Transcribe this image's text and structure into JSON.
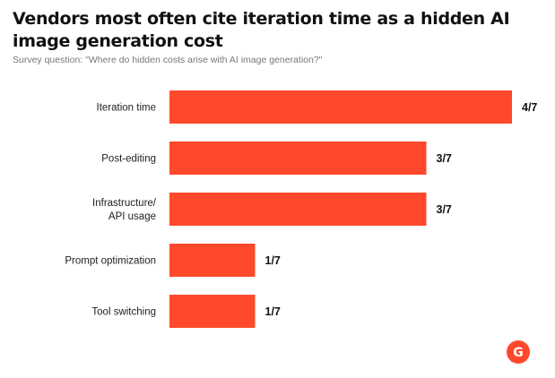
{
  "title": "Vendors most often cite iteration time as a hidden AI image generation cost",
  "subtitle": "Survey question: \"Where do hidden costs arise with AI image generation?\"",
  "brand": {
    "logo_letter": "G",
    "logo_color": "#ff492c"
  },
  "chart_data": {
    "type": "bar",
    "orientation": "horizontal",
    "categories": [
      [
        "Iteration time"
      ],
      [
        "Post-editing"
      ],
      [
        "Infrastructure/",
        "API usage"
      ],
      [
        "Prompt optimization"
      ],
      [
        "Tool switching"
      ]
    ],
    "values": [
      4,
      3,
      3,
      1,
      1
    ],
    "data_labels": [
      "4/7",
      "3/7",
      "3/7",
      "1/7",
      "1/7"
    ],
    "xlim": [
      0,
      4
    ],
    "bar_color": "#ff492c",
    "grid": false,
    "legend": "none"
  }
}
